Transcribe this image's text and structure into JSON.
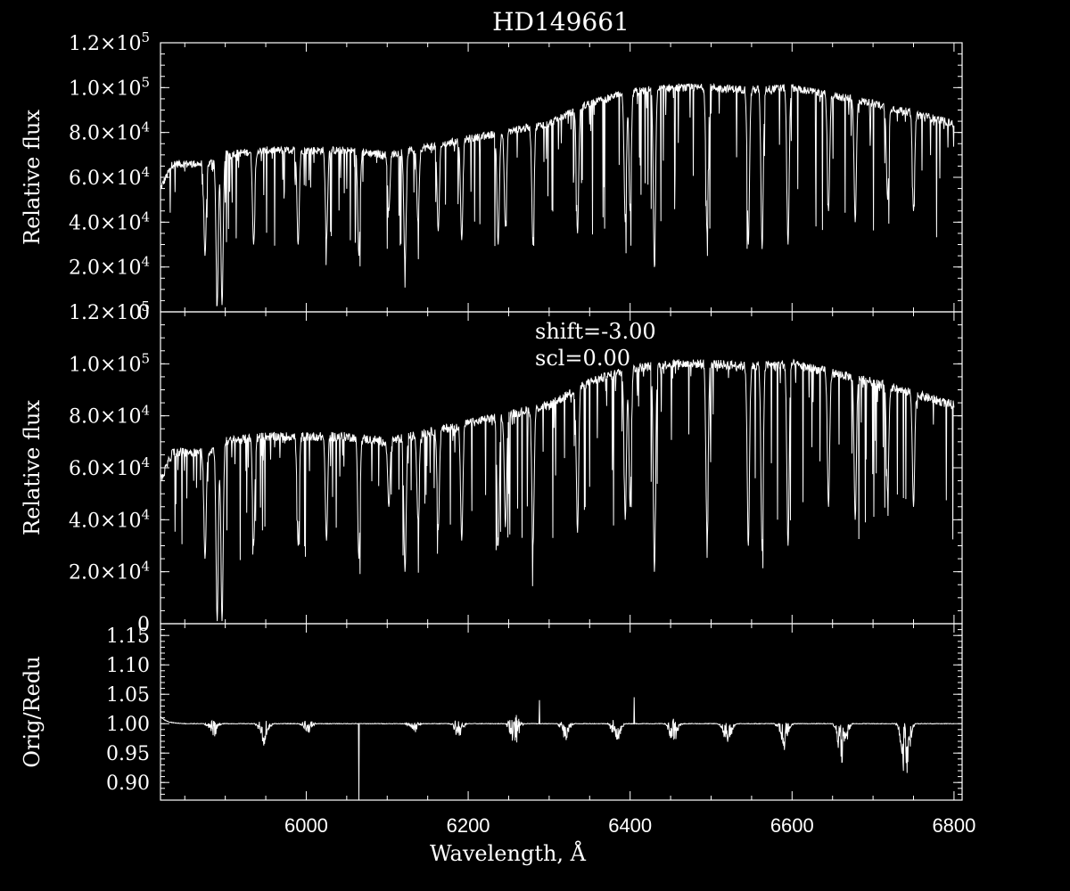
{
  "title": "HD149661",
  "colors": {
    "background": "#000000",
    "foreground": "#ffffff"
  },
  "chart_data": [
    {
      "type": "line",
      "ylabel": "Relative flux",
      "xlim": [
        5820,
        6810
      ],
      "ylim": [
        0,
        120000
      ],
      "yticks": [
        {
          "value": 0,
          "mant": "0",
          "exp": ""
        },
        {
          "value": 20000,
          "mant": "2.0×10",
          "exp": "4"
        },
        {
          "value": 40000,
          "mant": "4.0×10",
          "exp": "4"
        },
        {
          "value": 60000,
          "mant": "6.0×10",
          "exp": "4"
        },
        {
          "value": 80000,
          "mant": "8.0×10",
          "exp": "4"
        },
        {
          "value": 100000,
          "mant": "1.0×10",
          "exp": "5"
        },
        {
          "value": 120000,
          "mant": "1.2×10",
          "exp": "5"
        }
      ],
      "x_range": [
        5820,
        6800
      ],
      "continuum": [
        [
          5820,
          55000
        ],
        [
          5835,
          66000
        ],
        [
          5880,
          66000
        ],
        [
          5895,
          70000
        ],
        [
          5950,
          72000
        ],
        [
          6050,
          72000
        ],
        [
          6100,
          70000
        ],
        [
          6200,
          77000
        ],
        [
          6300,
          84000
        ],
        [
          6350,
          93000
        ],
        [
          6400,
          98000
        ],
        [
          6450,
          100000
        ],
        [
          6500,
          100000
        ],
        [
          6550,
          99000
        ],
        [
          6600,
          100000
        ],
        [
          6700,
          93000
        ],
        [
          6800,
          84000
        ]
      ],
      "dips": [
        [
          5875,
          25000
        ],
        [
          5890,
          3000
        ],
        [
          5896,
          3000
        ],
        [
          5935,
          30000
        ],
        [
          5990,
          30000
        ],
        [
          6025,
          32000
        ],
        [
          6065,
          25000
        ],
        [
          6102,
          45000
        ],
        [
          6122,
          20000
        ],
        [
          6138,
          40000
        ],
        [
          6163,
          36000
        ],
        [
          6192,
          32000
        ],
        [
          6237,
          30000
        ],
        [
          6246,
          38000
        ],
        [
          6280,
          30000
        ],
        [
          6335,
          35000
        ],
        [
          6394,
          40000
        ],
        [
          6400,
          45000
        ],
        [
          6430,
          20000
        ],
        [
          6495,
          35000
        ],
        [
          6546,
          30000
        ],
        [
          6563,
          28000
        ],
        [
          6595,
          30000
        ],
        [
          6645,
          45000
        ],
        [
          6678,
          40000
        ],
        [
          6718,
          50000
        ],
        [
          6750,
          45000
        ]
      ]
    },
    {
      "type": "line",
      "ylabel": "Relative flux",
      "xlim": [
        5820,
        6810
      ],
      "ylim": [
        0,
        120000
      ],
      "annotations": [
        "shift=-3.00",
        "scl=0.00"
      ],
      "yticks": [
        {
          "value": 0,
          "mant": "0",
          "exp": ""
        },
        {
          "value": 20000,
          "mant": "2.0×10",
          "exp": "4"
        },
        {
          "value": 40000,
          "mant": "4.0×10",
          "exp": "4"
        },
        {
          "value": 60000,
          "mant": "6.0×10",
          "exp": "4"
        },
        {
          "value": 80000,
          "mant": "8.0×10",
          "exp": "4"
        },
        {
          "value": 100000,
          "mant": "1.0×10",
          "exp": "5"
        },
        {
          "value": 120000,
          "mant": "1.2×10",
          "exp": "5"
        }
      ],
      "x_range": [
        5820,
        6800
      ],
      "continuum": [
        [
          5820,
          55000
        ],
        [
          5835,
          66000
        ],
        [
          5880,
          66000
        ],
        [
          5895,
          70000
        ],
        [
          5950,
          72000
        ],
        [
          6050,
          72000
        ],
        [
          6100,
          70000
        ],
        [
          6200,
          77000
        ],
        [
          6300,
          84000
        ],
        [
          6350,
          93000
        ],
        [
          6400,
          98000
        ],
        [
          6450,
          100000
        ],
        [
          6500,
          100000
        ],
        [
          6550,
          99000
        ],
        [
          6600,
          100000
        ],
        [
          6700,
          93000
        ],
        [
          6800,
          84000
        ]
      ],
      "dips": [
        [
          5875,
          25000
        ],
        [
          5890,
          1000
        ],
        [
          5896,
          1000
        ],
        [
          5935,
          30000
        ],
        [
          5990,
          30000
        ],
        [
          6025,
          32000
        ],
        [
          6065,
          25000
        ],
        [
          6102,
          45000
        ],
        [
          6122,
          20000
        ],
        [
          6138,
          40000
        ],
        [
          6163,
          36000
        ],
        [
          6192,
          32000
        ],
        [
          6237,
          30000
        ],
        [
          6246,
          38000
        ],
        [
          6280,
          30000
        ],
        [
          6335,
          35000
        ],
        [
          6394,
          40000
        ],
        [
          6400,
          45000
        ],
        [
          6430,
          20000
        ],
        [
          6495,
          35000
        ],
        [
          6546,
          30000
        ],
        [
          6563,
          28000
        ],
        [
          6595,
          30000
        ],
        [
          6645,
          45000
        ],
        [
          6678,
          40000
        ],
        [
          6718,
          50000
        ],
        [
          6750,
          45000
        ]
      ]
    },
    {
      "type": "line",
      "ylabel": "Orig/Redu",
      "xlabel": "Wavelength, Å",
      "xlim": [
        5820,
        6810
      ],
      "ylim": [
        0.87,
        1.17
      ],
      "yticks": [
        {
          "value": 0.9,
          "label": "0.90"
        },
        {
          "value": 0.95,
          "label": "0.95"
        },
        {
          "value": 1.0,
          "label": "1.00"
        },
        {
          "value": 1.05,
          "label": "1.05"
        },
        {
          "value": 1.1,
          "label": "1.10"
        },
        {
          "value": 1.15,
          "label": "1.15"
        }
      ],
      "xticks": [
        6000,
        6200,
        6400,
        6600,
        6800
      ],
      "x_range": [
        5820,
        6800
      ],
      "baseline": 1.0,
      "features": [
        [
          5885,
          0.012,
          0.985
        ],
        [
          5948,
          0.015,
          0.97
        ],
        [
          6002,
          0.012,
          0.99
        ],
        [
          6133,
          0.008,
          0.99
        ],
        [
          6188,
          0.01,
          0.985
        ],
        [
          6257,
          0.03,
          0.985
        ],
        [
          6320,
          0.01,
          0.98
        ],
        [
          6383,
          0.015,
          0.975
        ],
        [
          6453,
          0.012,
          0.97
        ],
        [
          6520,
          0.005,
          0.965
        ],
        [
          6590,
          0.01,
          0.955
        ],
        [
          6662,
          0.005,
          0.92
        ],
        [
          6740,
          0.005,
          0.905
        ]
      ],
      "spikes": [
        [
          6065,
          0.87
        ],
        [
          6288,
          1.04
        ],
        [
          6405,
          1.045
        ]
      ]
    }
  ]
}
